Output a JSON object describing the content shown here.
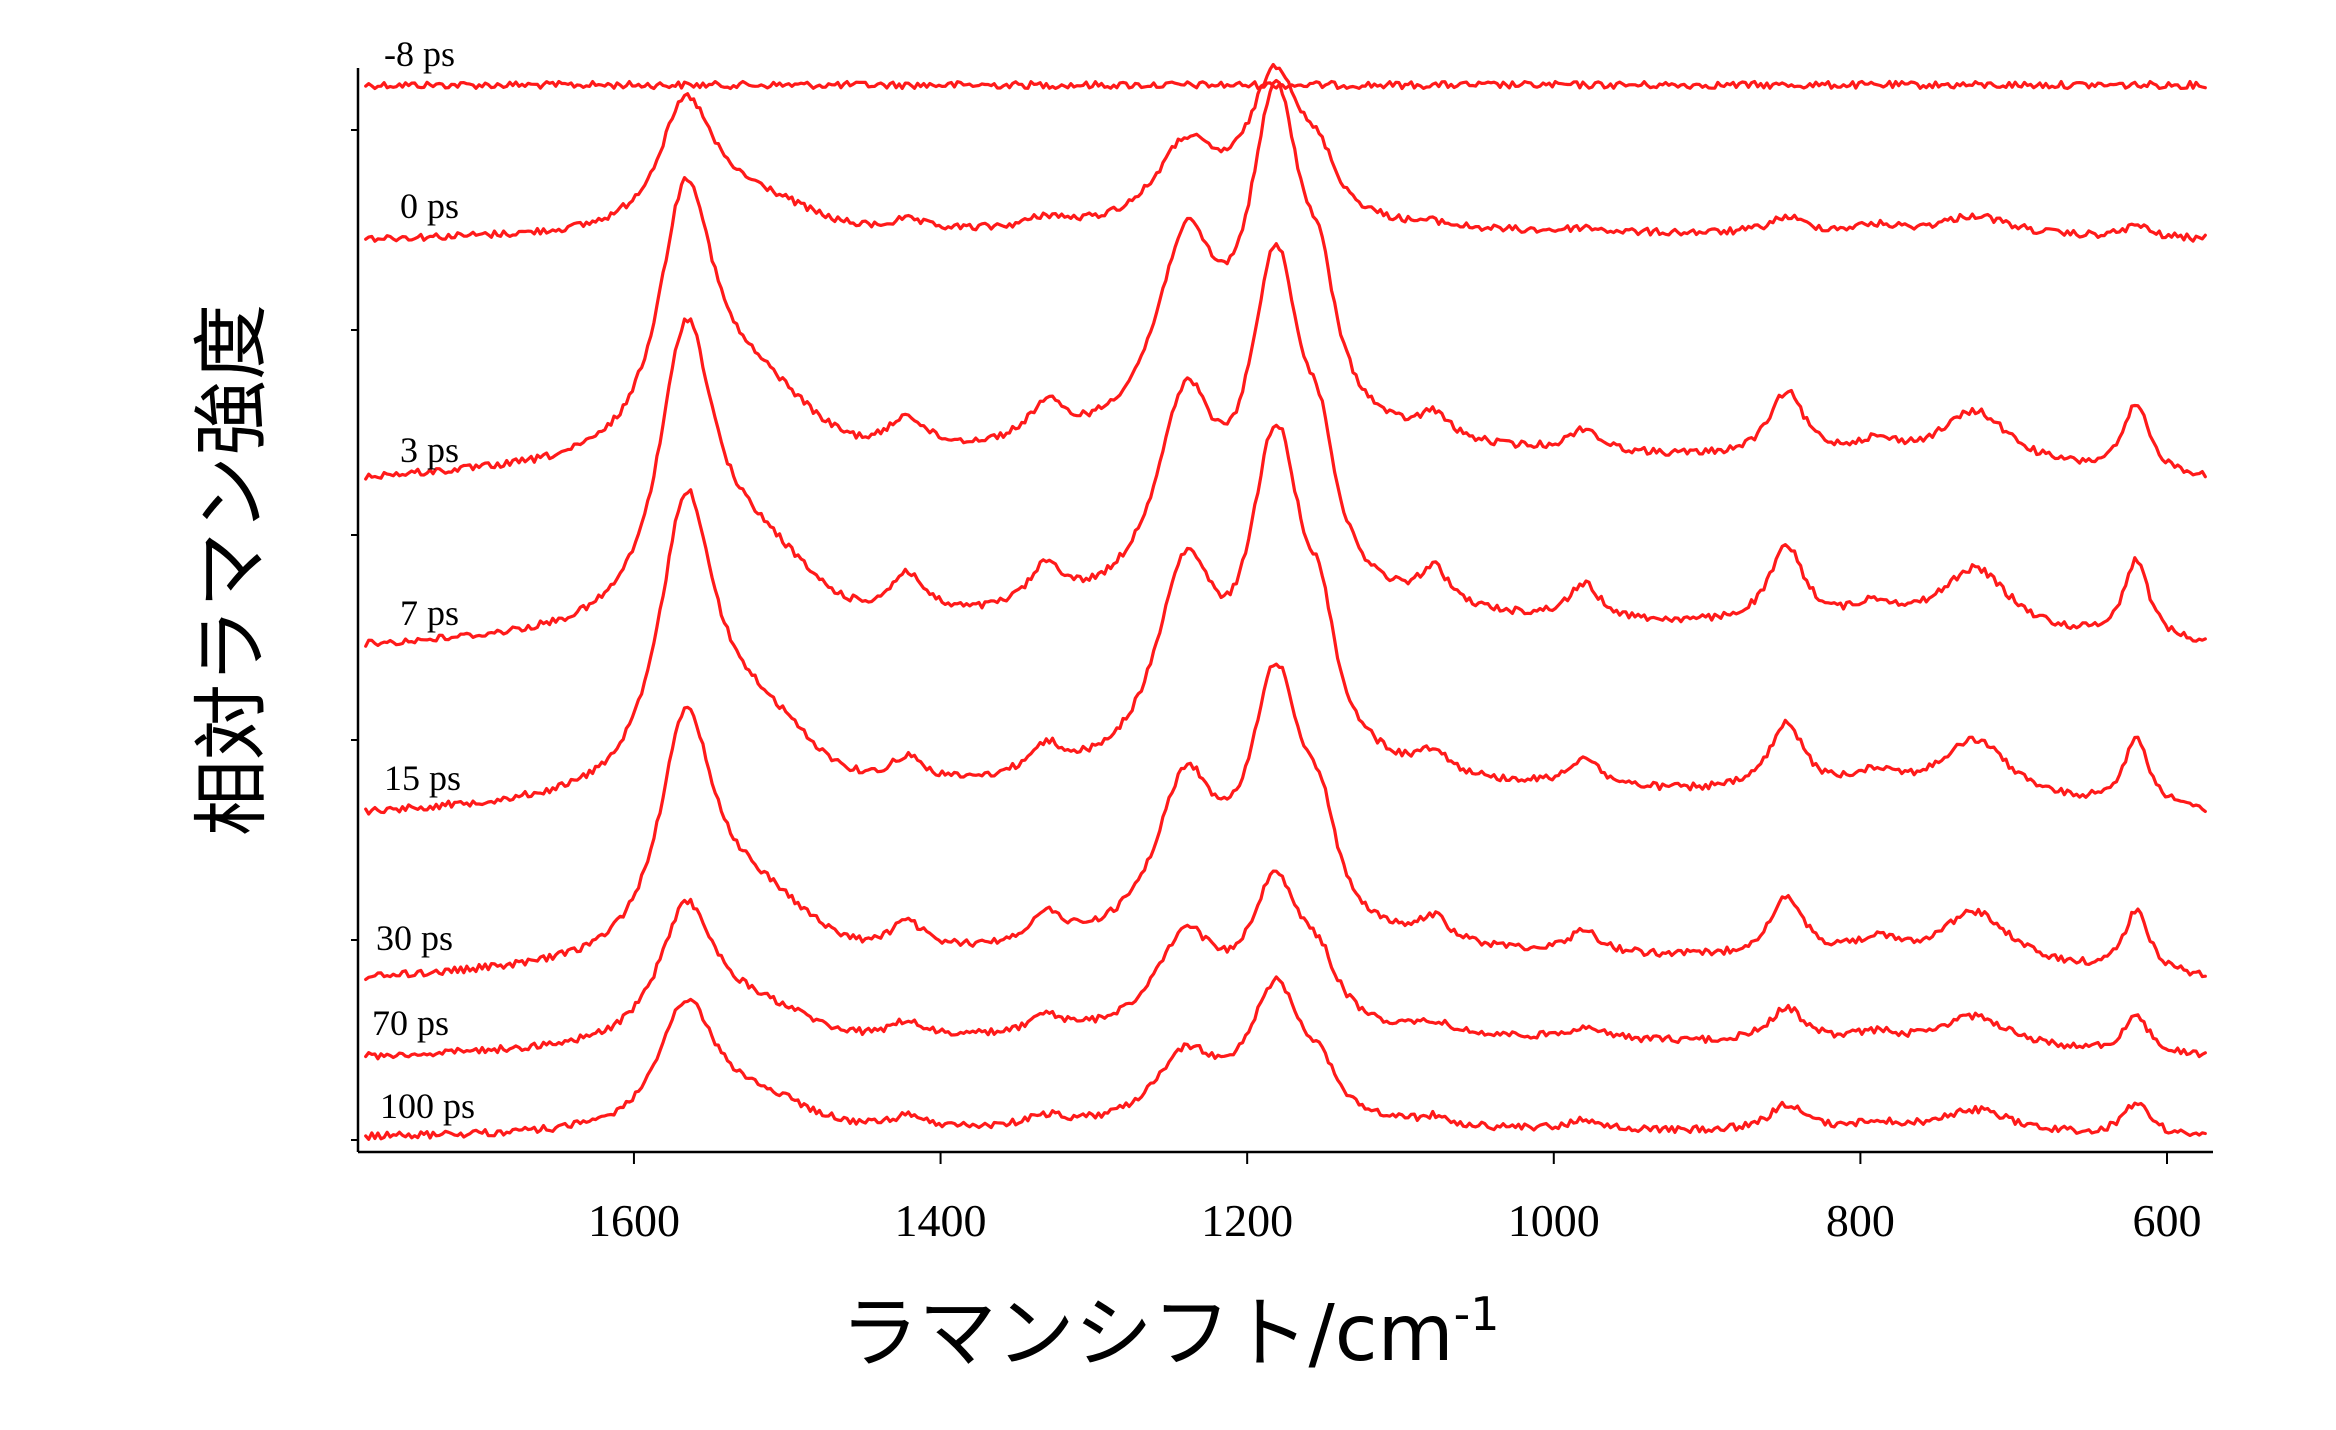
{
  "chart_data": {
    "type": "line",
    "title": "",
    "xlabel": "ラマンシフト/cm",
    "xlabel_sup": "-1",
    "ylabel": "相対ラマン強度",
    "x_reversed": true,
    "xlim": [
      1780,
      570
    ],
    "xticks": [
      1600,
      1400,
      1200,
      1000,
      800,
      600
    ],
    "grid": false,
    "legend": "none",
    "line_color": "#ff1a1a",
    "peak_positions_cm-1": [
      1566,
      1422,
      1331,
      1240,
      1181,
      1152,
      1078,
      980,
      848,
      790,
      725,
      620
    ],
    "series": [
      {
        "name": "-8 ps",
        "baseline_start": 0.02,
        "baseline_end": 0.02,
        "peak_heights": [
          0,
          0,
          0,
          0,
          0,
          0,
          0,
          0,
          0,
          0,
          0,
          0
        ]
      },
      {
        "name": "0 ps",
        "baseline_start": 0.0,
        "baseline_end": 0.0,
        "peak_heights": [
          0.63,
          0.05,
          0.05,
          0.38,
          0.74,
          0.18,
          0.02,
          0.02,
          0.08,
          0.04,
          0.1,
          0.06
        ]
      },
      {
        "name": "3 ps",
        "baseline_start": 0.0,
        "baseline_end": 0.0,
        "peak_heights": [
          1.3,
          0.16,
          0.18,
          0.92,
          1.62,
          0.42,
          0.12,
          0.11,
          0.32,
          0.08,
          0.27,
          0.33
        ]
      },
      {
        "name": "7 ps",
        "baseline_start": 0.0,
        "baseline_end": 0.0,
        "peak_heights": [
          1.42,
          0.21,
          0.2,
          0.96,
          1.64,
          0.43,
          0.18,
          0.17,
          0.38,
          0.1,
          0.32,
          0.39
        ]
      },
      {
        "name": "15 ps",
        "baseline_start": 0.0,
        "baseline_end": 0.0,
        "peak_heights": [
          1.4,
          0.13,
          0.14,
          0.96,
          1.59,
          0.42,
          0.11,
          0.14,
          0.33,
          0.1,
          0.3,
          0.34
        ]
      },
      {
        "name": "30 ps",
        "baseline_start": 0.0,
        "baseline_end": 0.0,
        "peak_heights": [
          1.16,
          0.14,
          0.14,
          0.76,
          1.26,
          0.36,
          0.12,
          0.11,
          0.29,
          0.09,
          0.27,
          0.3
        ]
      },
      {
        "name": "70 ps",
        "baseline_start": 0.0,
        "baseline_end": 0.0,
        "peak_heights": [
          0.66,
          0.08,
          0.08,
          0.45,
          0.72,
          0.19,
          0.05,
          0.06,
          0.17,
          0.05,
          0.16,
          0.18
        ]
      },
      {
        "name": "100 ps",
        "baseline_start": 0.0,
        "baseline_end": 0.0,
        "peak_heights": [
          0.61,
          0.06,
          0.05,
          0.33,
          0.67,
          0.14,
          0.04,
          0.05,
          0.13,
          0.04,
          0.12,
          0.16
        ]
      }
    ]
  }
}
